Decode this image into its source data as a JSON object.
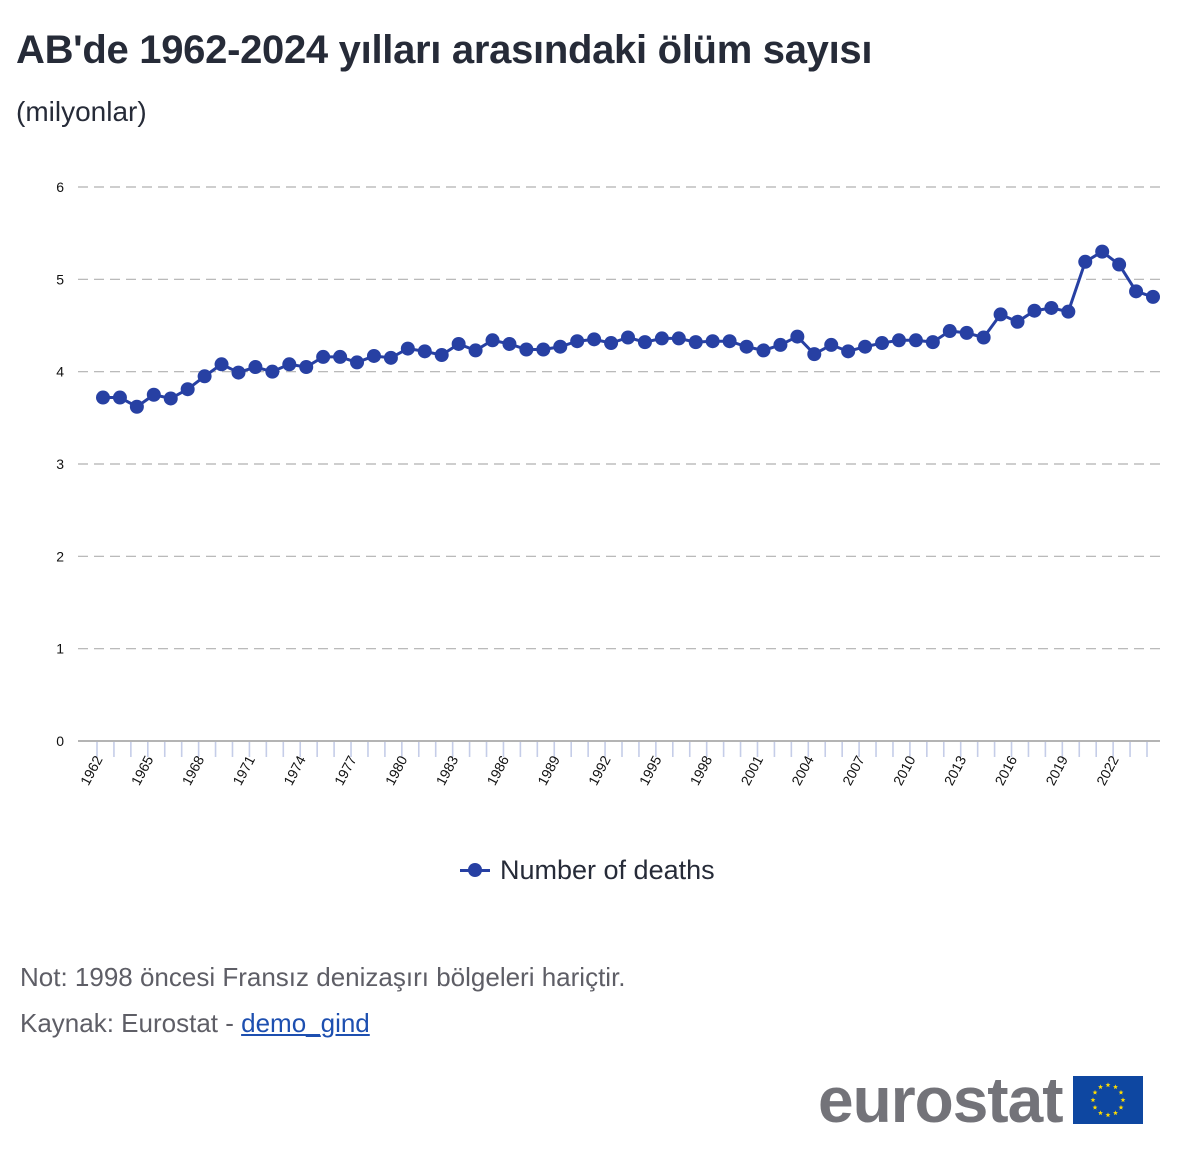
{
  "title": "AB'de 1962-2024 yılları arasındaki ölüm sayısı",
  "subtitle": "(milyonlar)",
  "legend": {
    "label": "Number of deaths"
  },
  "note": "Not: 1998 öncesi Fransız denizaşırı bölgeleri hariçtir.",
  "source": {
    "prefix": "Kaynak: Eurostat - ",
    "link_text": "demo_gind"
  },
  "logo": {
    "text": "eurostat",
    "flag_icon": "eu-flag-icon"
  },
  "colors": {
    "series": "#2740a3",
    "grid": "#b0b0b0",
    "text": "#262b38",
    "axis_tick": "#c5cde8"
  },
  "chart_data": {
    "type": "line",
    "title": "AB'de 1962-2024 yılları arasındaki ölüm sayısı",
    "ylabel": "(milyonlar)",
    "ylim": [
      0,
      6
    ],
    "yticks": [
      0,
      1,
      2,
      3,
      4,
      5,
      6
    ],
    "grid": true,
    "legend_position": "bottom-center",
    "x_tick_labels": [
      "1962",
      "1965",
      "1968",
      "1971",
      "1974",
      "1977",
      "1980",
      "1983",
      "1986",
      "1989",
      "1992",
      "1995",
      "1998",
      "2001",
      "2004",
      "2007",
      "2010",
      "2013",
      "2016",
      "2019",
      "2022"
    ],
    "x": [
      1962,
      1963,
      1964,
      1965,
      1966,
      1967,
      1968,
      1969,
      1970,
      1971,
      1972,
      1973,
      1974,
      1975,
      1976,
      1977,
      1978,
      1979,
      1980,
      1981,
      1982,
      1983,
      1984,
      1985,
      1986,
      1987,
      1988,
      1989,
      1990,
      1991,
      1992,
      1993,
      1994,
      1995,
      1996,
      1997,
      1998,
      1999,
      2000,
      2001,
      2002,
      2003,
      2004,
      2005,
      2006,
      2007,
      2008,
      2009,
      2010,
      2011,
      2012,
      2013,
      2014,
      2015,
      2016,
      2017,
      2018,
      2019,
      2020,
      2021,
      2022,
      2023,
      2024
    ],
    "series": [
      {
        "name": "Number of deaths",
        "values": [
          3.72,
          3.72,
          3.62,
          3.75,
          3.71,
          3.81,
          3.95,
          4.08,
          3.99,
          4.05,
          4.0,
          4.08,
          4.05,
          4.16,
          4.16,
          4.1,
          4.17,
          4.15,
          4.25,
          4.22,
          4.18,
          4.3,
          4.23,
          4.34,
          4.3,
          4.24,
          4.24,
          4.27,
          4.33,
          4.35,
          4.31,
          4.37,
          4.32,
          4.36,
          4.36,
          4.32,
          4.33,
          4.33,
          4.27,
          4.23,
          4.29,
          4.38,
          4.19,
          4.29,
          4.22,
          4.27,
          4.31,
          4.34,
          4.34,
          4.32,
          4.44,
          4.42,
          4.37,
          4.62,
          4.54,
          4.66,
          4.69,
          4.65,
          5.19,
          5.3,
          5.16,
          4.87,
          4.81
        ]
      }
    ]
  }
}
